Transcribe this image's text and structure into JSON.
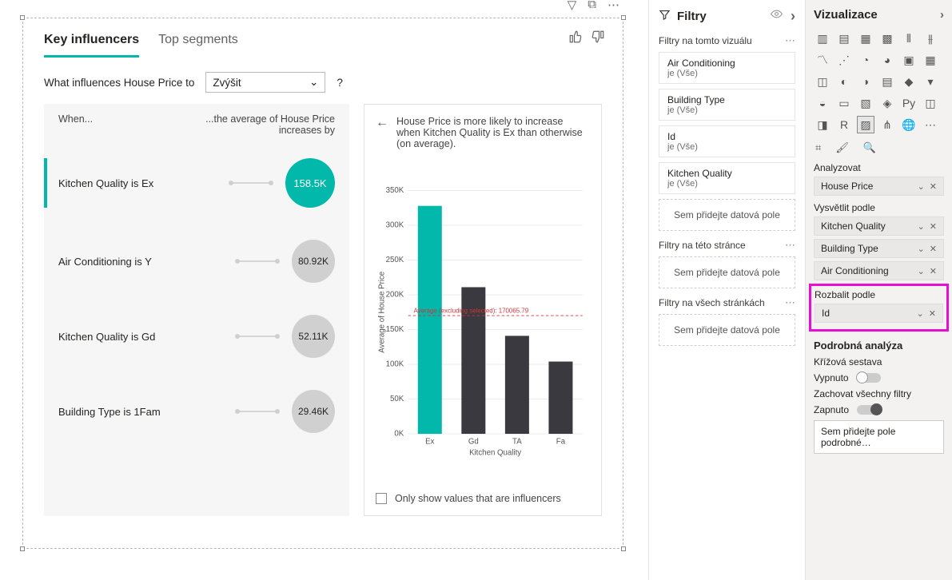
{
  "visual": {
    "tabs": {
      "active": "Key influencers",
      "other": "Top segments"
    },
    "toolbar": {
      "filter": "▽",
      "popout": "⧉",
      "more": "⋯",
      "thumbs_up": "👍",
      "thumbs_down": "👎"
    },
    "question_prefix": "What influences House Price to",
    "select_value": "Zvýšit",
    "question_mark": "?",
    "headers": {
      "when": "When...",
      "then": "...the average of House Price increases by"
    },
    "influencers": [
      {
        "label": "Kitchen Quality is Ex",
        "value": "158.5K",
        "active": true
      },
      {
        "label": "Air Conditioning is Y",
        "value": "80.92K",
        "active": false
      },
      {
        "label": "Kitchen Quality is Gd",
        "value": "52.11K",
        "active": false
      },
      {
        "label": "Building Type is 1Fam",
        "value": "29.46K",
        "active": false
      }
    ],
    "chart": {
      "back_arrow": "←",
      "title": "House Price is more likely to increase when Kitchen Quality is Ex than otherwise (on average).",
      "categories": [
        "Ex",
        "Gd",
        "TA",
        "Fa"
      ],
      "values": [
        328000,
        211000,
        141000,
        104000
      ],
      "bar_colors": [
        "#01b8aa",
        "#39393f",
        "#39393f",
        "#39393f"
      ],
      "ylim": [
        0,
        350000
      ],
      "ytick_step": 50000,
      "ytick_labels": [
        "0K",
        "50K",
        "100K",
        "150K",
        "200K",
        "250K",
        "300K",
        "350K"
      ],
      "ylabel": "Average of House Price",
      "xlabel": "Kitchen Quality",
      "ref_line": {
        "value": 170065.79,
        "label": "Average (excluding selected): 170065.79",
        "color": "#d13438"
      },
      "grid_color": "#e9e9e9",
      "bar_width": 0.55
    },
    "only_label": "Only show values that are influencers"
  },
  "filters": {
    "title": "Filtry",
    "eye_icon": "👁",
    "chev": "›",
    "sections": {
      "visual": {
        "label": "Filtry na tomto vizuálu",
        "cards": [
          {
            "t": "Air Conditioning",
            "v": "je (Vše)"
          },
          {
            "t": "Building Type",
            "v": "je (Vše)"
          },
          {
            "t": "Id",
            "v": "je (Vše)"
          },
          {
            "t": "Kitchen Quality",
            "v": "je (Vše)"
          }
        ],
        "drop": "Sem přidejte datová pole"
      },
      "page": {
        "label": "Filtry na této stránce",
        "drop": "Sem přidejte datová pole"
      },
      "all": {
        "label": "Filtry na všech stránkách",
        "drop": "Sem přidejte datová pole"
      }
    }
  },
  "viz": {
    "title": "Vizualizace",
    "icons": [
      "▥",
      "▤",
      "▦",
      "▩",
      "⫴",
      "⫵",
      "〽",
      "⋰",
      "◔",
      "◕",
      "▣",
      "▦",
      "◫",
      "◐",
      "◑",
      "▤",
      "◆",
      "▾",
      "◒",
      "▭",
      "▧",
      "◈",
      "Py",
      "◫",
      "◨",
      "R",
      "▨",
      "⋔",
      "🌐",
      "⋯"
    ],
    "selected_icon_index": 26,
    "tab_icons": [
      "⌗",
      "🖌",
      "🔍"
    ],
    "wells": {
      "analyze": {
        "label": "Analyzovat",
        "fields": [
          "House Price"
        ]
      },
      "explain": {
        "label": "Vysvětlit podle",
        "fields": [
          "Kitchen Quality",
          "Building Type",
          "Air Conditioning"
        ]
      },
      "expand": {
        "label": "Rozbalit podle",
        "fields": [
          "Id"
        ]
      }
    },
    "detail_h": "Podrobná analýza",
    "cross": {
      "label": "Křížová sestava",
      "value": "Vypnuto",
      "on": false
    },
    "keep": {
      "label": "Zachovat všechny filtry",
      "value": "Zapnuto",
      "on": true
    },
    "drill_drop": "Sem přidejte pole podrobné…"
  }
}
